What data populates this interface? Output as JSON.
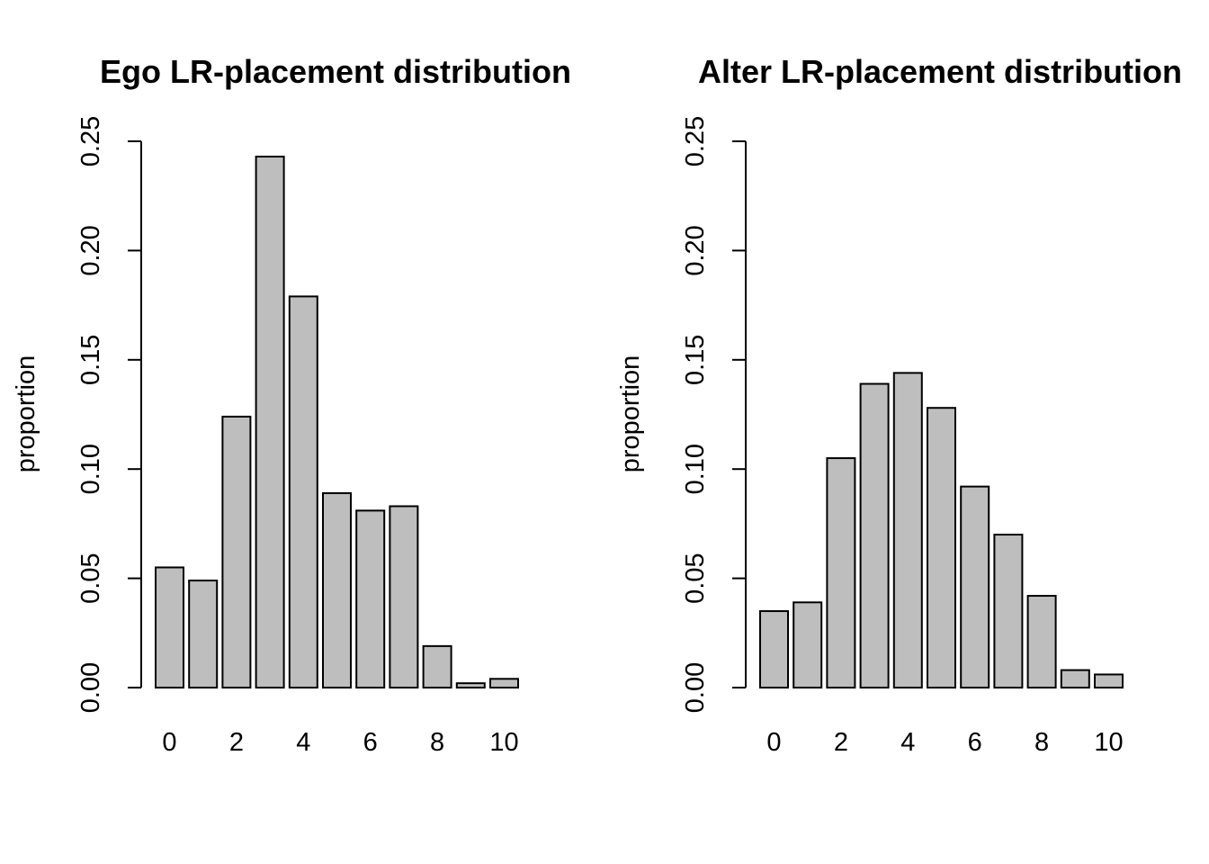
{
  "chart_data": [
    {
      "type": "bar",
      "title": "Ego LR-placement distribution",
      "xlabel": "",
      "ylabel": "proportion",
      "categories": [
        "0",
        "1",
        "2",
        "3",
        "4",
        "5",
        "6",
        "7",
        "8",
        "9",
        "10"
      ],
      "values": [
        0.055,
        0.049,
        0.124,
        0.243,
        0.179,
        0.089,
        0.081,
        0.083,
        0.019,
        0.002,
        0.004
      ],
      "ylim": [
        0,
        0.25
      ],
      "yticks": [
        "0.00",
        "0.05",
        "0.10",
        "0.15",
        "0.20",
        "0.25"
      ],
      "xticks": [
        "0",
        "2",
        "4",
        "6",
        "8",
        "10"
      ],
      "bar_color": "#bebebe",
      "grid": false
    },
    {
      "type": "bar",
      "title": "Alter LR-placement distribution",
      "xlabel": "",
      "ylabel": "proportion",
      "categories": [
        "0",
        "1",
        "2",
        "3",
        "4",
        "5",
        "6",
        "7",
        "8",
        "9",
        "10"
      ],
      "values": [
        0.035,
        0.039,
        0.105,
        0.139,
        0.144,
        0.128,
        0.092,
        0.07,
        0.042,
        0.008,
        0.006
      ],
      "ylim": [
        0,
        0.25
      ],
      "yticks": [
        "0.00",
        "0.05",
        "0.10",
        "0.15",
        "0.20",
        "0.25"
      ],
      "xticks": [
        "0",
        "2",
        "4",
        "6",
        "8",
        "10"
      ],
      "bar_color": "#bebebe",
      "grid": false
    }
  ]
}
